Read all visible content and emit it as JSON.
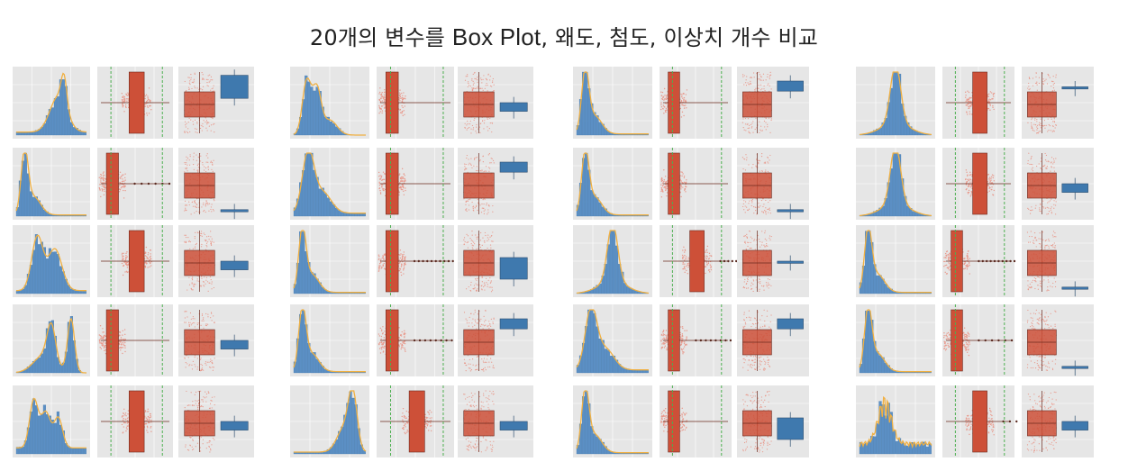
{
  "page": {
    "title_parts": [
      "20개의 변수를 ",
      "Box Plot",
      ", 왜도, 첨도, ",
      "이상치 개수 비교"
    ]
  },
  "colors": {
    "hist": "#5b8fc4",
    "kde": "#f0b042",
    "box_orange": "#cd5038",
    "box_blue": "#3f79ae",
    "swarm": "#e89a8d",
    "dashed": "#4caf50",
    "panel_bg": "#e6e6e6",
    "grid": "#ffffff"
  },
  "chart_data": {
    "type": "composite",
    "description_of_layout": "4 groups x 5 variables; each variable row has histogram+KDE, horizontal boxplot with swarm, and paired vertical boxplots",
    "groups": [
      {
        "variables": [
          {
            "hist_shape": "left_skew_peak",
            "outliers_right": 0,
            "pair_second_box": "high_wide"
          },
          {
            "hist_shape": "right_skew_sharp",
            "outliers_right": 6,
            "pair_second_box": "flat_low"
          },
          {
            "hist_shape": "bimodal_wide",
            "outliers_right": 0,
            "pair_second_box": "mid_small"
          },
          {
            "hist_shape": "bimodal_right",
            "outliers_right": 0,
            "pair_second_box": "mid_small"
          },
          {
            "hist_shape": "multimodal",
            "outliers_right": 0,
            "pair_second_box": "mid_small"
          }
        ]
      },
      {
        "variables": [
          {
            "hist_shape": "right_skew_bimodal",
            "outliers_right": 0,
            "pair_second_box": "mid_small"
          },
          {
            "hist_shape": "right_skew",
            "outliers_right": 0,
            "pair_second_box": "high_small"
          },
          {
            "hist_shape": "right_skew_sharp",
            "outliers_right": 10,
            "pair_second_box": "mid_wide"
          },
          {
            "hist_shape": "right_skew_sharp",
            "outliers_right": 8,
            "pair_second_box": "high_small"
          },
          {
            "hist_shape": "left_skew",
            "outliers_right": 0,
            "pair_second_box": "mid_small"
          }
        ]
      },
      {
        "variables": [
          {
            "hist_shape": "right_skew_sharp",
            "outliers_right": 0,
            "pair_second_box": "high_small"
          },
          {
            "hist_shape": "right_skew_sharp",
            "outliers_right": 0,
            "pair_second_box": "flat_low"
          },
          {
            "hist_shape": "normal_peak",
            "outliers_right": 10,
            "pair_second_box": "flat_mid"
          },
          {
            "hist_shape": "right_skew",
            "outliers_right": 8,
            "pair_second_box": "high_small"
          },
          {
            "hist_shape": "right_skew_sharp",
            "outliers_right": 0,
            "pair_second_box": "mid_wide"
          }
        ]
      },
      {
        "variables": [
          {
            "hist_shape": "normal_peak",
            "outliers_right": 0,
            "pair_second_box": "flat_high"
          },
          {
            "hist_shape": "normal_peak",
            "outliers_right": 0,
            "pair_second_box": "mid_small"
          },
          {
            "hist_shape": "right_skew_sharp",
            "outliers_right": 10,
            "pair_second_box": "flat_low"
          },
          {
            "hist_shape": "right_skew_sharp",
            "outliers_right": 6,
            "pair_second_box": "flat_low"
          },
          {
            "hist_shape": "spiky_normal",
            "outliers_right": 6,
            "pair_second_box": "mid_small"
          }
        ]
      }
    ]
  }
}
